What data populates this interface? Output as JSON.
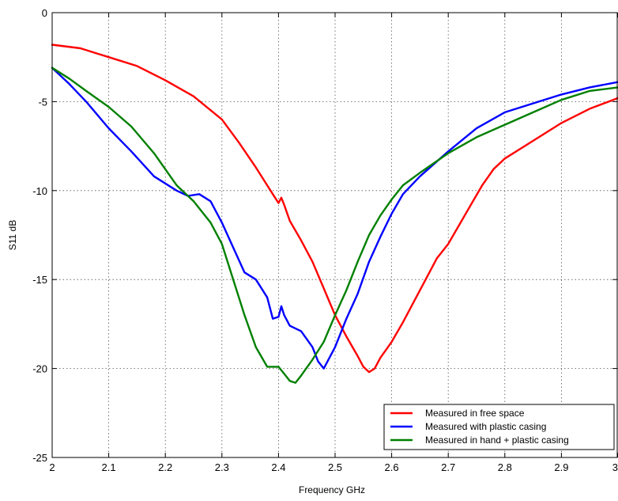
{
  "chart_data": {
    "type": "line",
    "xlabel": "Frequency GHz",
    "ylabel": "S11 dB",
    "xlim": [
      2,
      3
    ],
    "ylim": [
      -25,
      0
    ],
    "xticks": [
      2,
      2.1,
      2.2,
      2.3,
      2.4,
      2.5,
      2.6,
      2.7,
      2.8,
      2.9,
      3
    ],
    "xtick_labels": [
      "2",
      "2.1",
      "2.2",
      "2.3",
      "2.4",
      "2.5",
      "2.6",
      "2.7",
      "2.8",
      "2.9",
      "3"
    ],
    "yticks": [
      0,
      -5,
      -10,
      -15,
      -20,
      -25
    ],
    "ytick_labels": [
      "0",
      "-5",
      "-10",
      "-15",
      "-20",
      "-25"
    ],
    "grid": true,
    "legend_position": "bottom-right",
    "series": [
      {
        "name": "Measured in free space",
        "color": "#ff0000",
        "x": [
          2.0,
          2.05,
          2.1,
          2.15,
          2.2,
          2.25,
          2.3,
          2.33,
          2.36,
          2.38,
          2.39,
          2.4,
          2.405,
          2.41,
          2.42,
          2.44,
          2.46,
          2.48,
          2.5,
          2.52,
          2.54,
          2.55,
          2.56,
          2.57,
          2.58,
          2.6,
          2.62,
          2.64,
          2.66,
          2.68,
          2.7,
          2.72,
          2.74,
          2.76,
          2.78,
          2.8,
          2.85,
          2.9,
          2.95,
          3.0
        ],
        "y": [
          -1.8,
          -2.0,
          -2.5,
          -3.0,
          -3.8,
          -4.7,
          -6.0,
          -7.3,
          -8.7,
          -9.7,
          -10.2,
          -10.7,
          -10.4,
          -10.8,
          -11.7,
          -12.8,
          -14.0,
          -15.5,
          -17.0,
          -18.2,
          -19.3,
          -19.9,
          -20.2,
          -20.0,
          -19.4,
          -18.5,
          -17.4,
          -16.2,
          -15.0,
          -13.8,
          -13.0,
          -11.9,
          -10.8,
          -9.7,
          -8.8,
          -8.2,
          -7.2,
          -6.2,
          -5.4,
          -4.8
        ]
      },
      {
        "name": "Measured with plastic casing",
        "color": "#0000ff",
        "x": [
          2.0,
          2.03,
          2.06,
          2.1,
          2.14,
          2.18,
          2.22,
          2.24,
          2.26,
          2.28,
          2.3,
          2.32,
          2.34,
          2.36,
          2.38,
          2.39,
          2.4,
          2.405,
          2.41,
          2.42,
          2.44,
          2.46,
          2.47,
          2.48,
          2.5,
          2.52,
          2.54,
          2.56,
          2.58,
          2.6,
          2.62,
          2.65,
          2.7,
          2.75,
          2.8,
          2.85,
          2.9,
          2.95,
          3.0
        ],
        "y": [
          -3.1,
          -4.0,
          -5.0,
          -6.5,
          -7.8,
          -9.2,
          -10.0,
          -10.3,
          -10.2,
          -10.6,
          -11.8,
          -13.2,
          -14.6,
          -15.0,
          -16.0,
          -17.2,
          -17.1,
          -16.5,
          -17.0,
          -17.6,
          -17.9,
          -18.8,
          -19.6,
          -20.0,
          -18.8,
          -17.2,
          -15.8,
          -14.0,
          -12.6,
          -11.3,
          -10.2,
          -9.2,
          -7.8,
          -6.5,
          -5.6,
          -5.1,
          -4.6,
          -4.2,
          -3.9
        ]
      },
      {
        "name": "Measured in hand + plastic casing",
        "color": "#008000",
        "x": [
          2.0,
          2.03,
          2.06,
          2.1,
          2.14,
          2.18,
          2.2,
          2.22,
          2.25,
          2.28,
          2.3,
          2.32,
          2.34,
          2.36,
          2.38,
          2.4,
          2.41,
          2.42,
          2.43,
          2.44,
          2.46,
          2.48,
          2.5,
          2.52,
          2.54,
          2.56,
          2.58,
          2.6,
          2.62,
          2.65,
          2.7,
          2.75,
          2.8,
          2.85,
          2.9,
          2.95,
          3.0
        ],
        "y": [
          -3.1,
          -3.7,
          -4.4,
          -5.3,
          -6.4,
          -7.9,
          -8.8,
          -9.7,
          -10.6,
          -11.8,
          -13.0,
          -15.0,
          -17.0,
          -18.8,
          -19.9,
          -19.9,
          -20.3,
          -20.7,
          -20.8,
          -20.4,
          -19.5,
          -18.5,
          -17.0,
          -15.6,
          -14.0,
          -12.5,
          -11.4,
          -10.5,
          -9.7,
          -9.0,
          -7.9,
          -7.0,
          -6.3,
          -5.6,
          -4.9,
          -4.4,
          -4.2
        ]
      }
    ]
  }
}
